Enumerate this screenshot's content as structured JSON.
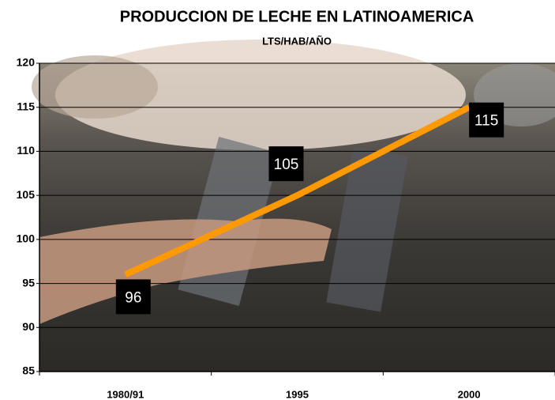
{
  "chart_data": {
    "type": "line",
    "title": "PRODUCCION DE LECHE EN LATINOAMERICA",
    "subtitle": "LTS/HAB/AÑO",
    "categories": [
      "1980/91",
      "1995",
      "2000"
    ],
    "series": [
      {
        "name": "LTS/HAB/AÑO",
        "color": "#ff9900",
        "values": [
          96,
          105,
          115
        ]
      }
    ],
    "ylim": [
      85,
      120
    ],
    "yticks": [
      85,
      90,
      95,
      100,
      105,
      110,
      115,
      120
    ],
    "grid": true
  }
}
